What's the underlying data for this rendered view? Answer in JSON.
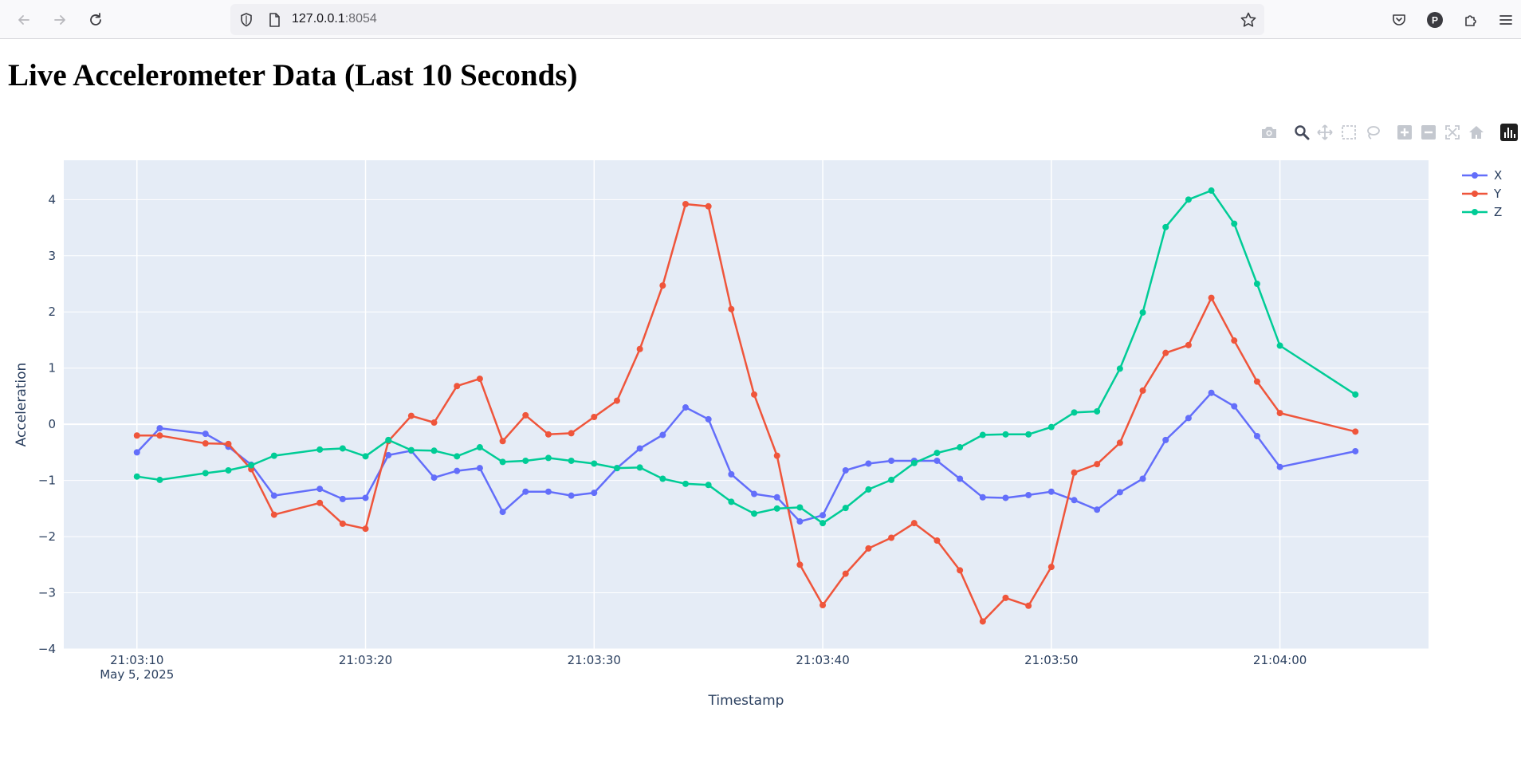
{
  "browser": {
    "url_host": "127.0.0.1",
    "url_port": ":8054"
  },
  "page": {
    "title": "Live Accelerometer Data (Last 10 Seconds)"
  },
  "modebar": {
    "buttons": [
      "camera-icon",
      "zoom-icon",
      "pan-icon",
      "box-select-icon",
      "lasso-select-icon",
      "zoom-in-icon",
      "zoom-out-icon",
      "autoscale-icon",
      "reset-axes-icon",
      "plotly-logo-icon"
    ]
  },
  "chart_data": {
    "type": "line",
    "xlabel": "Timestamp",
    "ylabel": "Acceleration",
    "x_date_label": "May 5, 2025",
    "x_ticks": [
      "21:03:10",
      "21:03:20",
      "21:03:30",
      "21:03:40",
      "21:03:50",
      "21:04:00"
    ],
    "x_tick_seconds": [
      10,
      20,
      30,
      40,
      50,
      60
    ],
    "xlim_seconds": [
      6.8,
      66.5
    ],
    "ylim": [
      -4,
      4.7
    ],
    "y_ticks": [
      -4,
      -3,
      -2,
      -1,
      0,
      1,
      2,
      3,
      4
    ],
    "y_tick_labels": [
      "−4",
      "−3",
      "−2",
      "−1",
      "0",
      "1",
      "2",
      "3",
      "4"
    ],
    "legend_position": "top-right",
    "grid": true,
    "colors": {
      "X": "#636efa",
      "Y": "#ef553b",
      "Z": "#00cc96",
      "plot_bg": "#e5ecf6",
      "text": "#2a3f5f"
    },
    "x_seconds": [
      10,
      11,
      13,
      14,
      15,
      16,
      18,
      19,
      20,
      21,
      22,
      23,
      24,
      25,
      26,
      27,
      28,
      29,
      30,
      31,
      32,
      33,
      34,
      35,
      36,
      37,
      38,
      39,
      40,
      41,
      42,
      43,
      44,
      45,
      46,
      47,
      48,
      49,
      50,
      51,
      52,
      53,
      54,
      55,
      56,
      57,
      58,
      59,
      60,
      61,
      63.3
    ],
    "series": [
      {
        "name": "X",
        "values": [
          -0.5,
          -0.07,
          -0.17,
          -0.4,
          -0.72,
          -1.27,
          -1.15,
          -1.33,
          -1.31,
          -0.55,
          -0.47,
          -0.95,
          -0.83,
          -0.78,
          -1.56,
          -1.2,
          -1.2,
          -1.27,
          -1.22,
          -0.78,
          -0.43,
          -0.19,
          0.3,
          0.09,
          -0.89,
          -1.24,
          -1.3,
          -1.73,
          -1.62,
          -0.82,
          -0.7,
          -0.65,
          -0.65,
          -0.65,
          -0.97,
          -1.3,
          -1.31,
          -1.26,
          -1.2,
          -1.35,
          -1.52,
          -1.21,
          -0.97,
          -0.28,
          0.11,
          0.56,
          0.32,
          -0.21,
          -0.76,
          null,
          -0.48
        ]
      },
      {
        "name": "Y",
        "values": [
          -0.2,
          -0.2,
          -0.34,
          -0.35,
          -0.8,
          -1.61,
          -1.4,
          -1.77,
          -1.86,
          -0.3,
          0.15,
          0.03,
          0.68,
          0.81,
          -0.3,
          0.16,
          -0.18,
          -0.16,
          0.13,
          0.42,
          1.34,
          2.47,
          3.92,
          3.88,
          2.05,
          0.53,
          -0.56,
          -2.5,
          -3.22,
          -2.66,
          -2.21,
          -2.02,
          -1.76,
          -2.07,
          -2.6,
          -3.51,
          -3.09,
          -3.23,
          -2.54,
          -0.86,
          -0.71,
          -0.33,
          0.6,
          1.27,
          1.41,
          2.25,
          1.49,
          0.76,
          0.2,
          null,
          -0.13
        ]
      },
      {
        "name": "Z",
        "values": [
          -0.93,
          -0.99,
          -0.87,
          -0.82,
          -0.73,
          -0.56,
          -0.45,
          -0.43,
          -0.57,
          -0.28,
          -0.46,
          -0.47,
          -0.57,
          -0.41,
          -0.67,
          -0.65,
          -0.6,
          -0.65,
          -0.7,
          -0.78,
          -0.77,
          -0.97,
          -1.06,
          -1.08,
          -1.38,
          -1.59,
          -1.5,
          -1.48,
          -1.76,
          -1.49,
          -1.16,
          -0.99,
          -0.69,
          -0.51,
          -0.41,
          -0.19,
          -0.18,
          -0.18,
          -0.05,
          0.21,
          0.23,
          0.99,
          1.99,
          3.51,
          4.0,
          4.16,
          3.57,
          2.5,
          1.4,
          null,
          0.53
        ]
      }
    ]
  }
}
